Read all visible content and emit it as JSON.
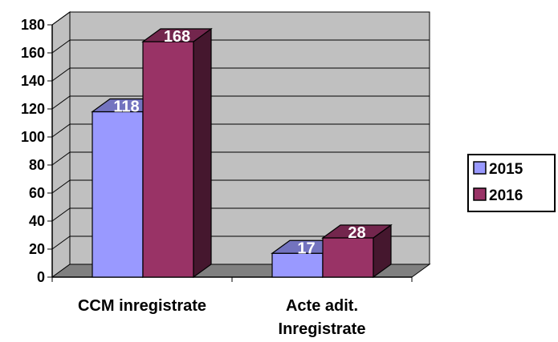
{
  "chart_data": {
    "type": "bar",
    "categories": [
      [
        "CCM inregistrate"
      ],
      [
        "Acte adit.",
        "Inregistrate"
      ]
    ],
    "series": [
      {
        "name": "2015",
        "values": [
          118,
          17
        ],
        "color": "#9999FF"
      },
      {
        "name": "2016",
        "values": [
          168,
          28
        ],
        "color": "#993366"
      }
    ],
    "ylim": [
      0,
      180
    ],
    "yticks": [
      0,
      20,
      40,
      60,
      80,
      100,
      120,
      140,
      160,
      180
    ],
    "grid": true,
    "legend": "right",
    "wall_color": "#C0C0C0",
    "floor_color": "#808080"
  }
}
